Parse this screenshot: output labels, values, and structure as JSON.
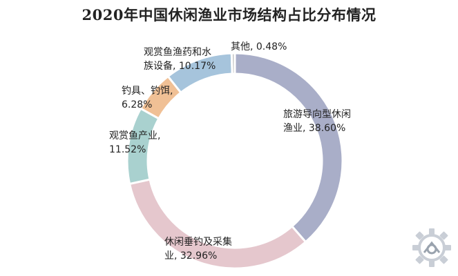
{
  "chart_data": {
    "type": "pie",
    "title": "2020年中国休闲渔业市场结构占比分布情况",
    "unit": "%",
    "slices": [
      {
        "label_lines": [
          "旅游导向型休闲",
          "渔业, 38.60%"
        ],
        "value": 38.6,
        "color": "#a9aec8"
      },
      {
        "label_lines": [
          "休闲垂钓及采集",
          "业, 32.96%"
        ],
        "value": 32.96,
        "color": "#e5c7cd"
      },
      {
        "label_lines": [
          "观赏鱼产业,",
          "11.52%"
        ],
        "value": 11.52,
        "color": "#a9d1cf"
      },
      {
        "label_lines": [
          "钓具、钓饵,",
          "6.28%"
        ],
        "value": 6.28,
        "color": "#f0c095"
      },
      {
        "label_lines": [
          "观赏鱼渔药和水",
          "族设备, 10.17%"
        ],
        "value": 10.17,
        "color": "#a6c4dc"
      },
      {
        "label_lines": [
          "其他, 0.48%"
        ],
        "value": 0.48,
        "color": "#c6c6c6"
      }
    ]
  }
}
